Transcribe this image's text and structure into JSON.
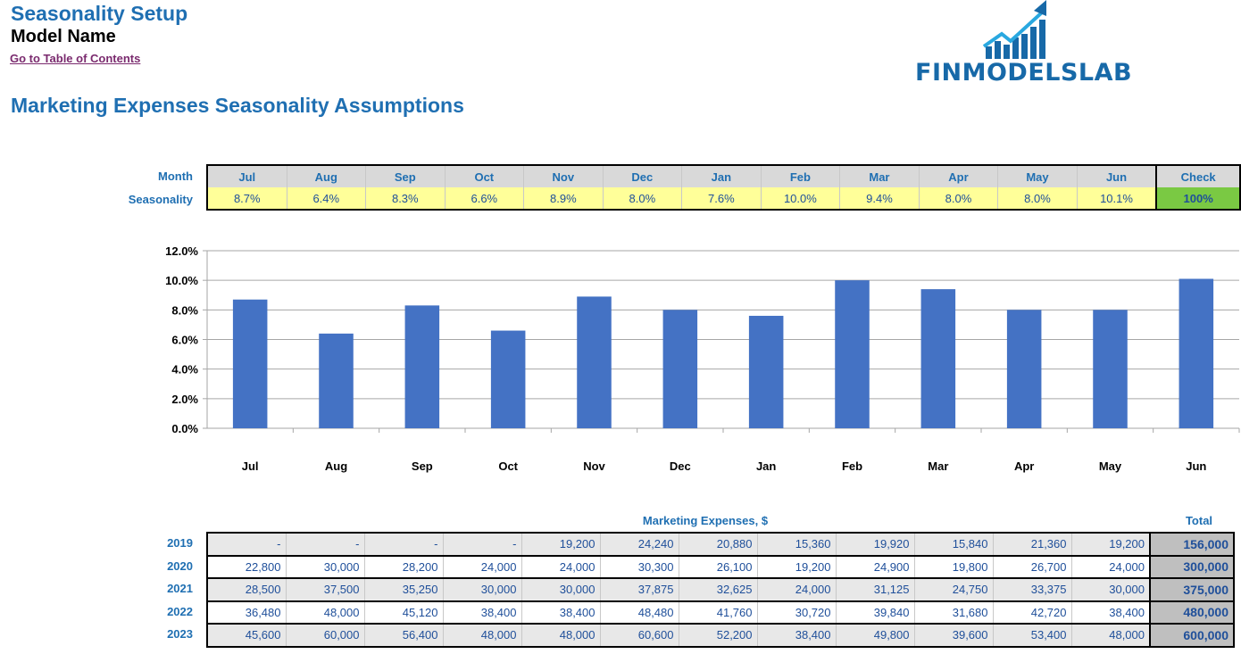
{
  "header": {
    "title": "Seasonality Setup",
    "model_name": "Model Name",
    "toc_link": "Go to Table of Contents",
    "logo_text": "FINMODELSLAB"
  },
  "section_title": "Marketing Expenses Seasonality Assumptions",
  "seasonality": {
    "month_label": "Month",
    "seasonality_label": "Seasonality",
    "months": [
      "Jul",
      "Aug",
      "Sep",
      "Oct",
      "Nov",
      "Dec",
      "Jan",
      "Feb",
      "Mar",
      "Apr",
      "May",
      "Jun"
    ],
    "values": [
      "8.7%",
      "6.4%",
      "8.3%",
      "6.6%",
      "8.9%",
      "8.0%",
      "7.6%",
      "10.0%",
      "9.4%",
      "8.0%",
      "8.0%",
      "10.1%"
    ],
    "check_label": "Check",
    "check_value": "100%"
  },
  "chart_data": {
    "type": "bar",
    "categories": [
      "Jul",
      "Aug",
      "Sep",
      "Oct",
      "Nov",
      "Dec",
      "Jan",
      "Feb",
      "Mar",
      "Apr",
      "May",
      "Jun"
    ],
    "values": [
      8.7,
      6.4,
      8.3,
      6.6,
      8.9,
      8.0,
      7.6,
      10.0,
      9.4,
      8.0,
      8.0,
      10.1
    ],
    "ylim": [
      0,
      12
    ],
    "yticks": [
      "0.0%",
      "2.0%",
      "4.0%",
      "6.0%",
      "8.0%",
      "10.0%",
      "12.0%"
    ],
    "grid": true,
    "color": "#4472c4"
  },
  "expenses": {
    "title": "Marketing Expenses, $",
    "total_label": "Total",
    "rows": [
      {
        "year": "2019",
        "values": [
          "-",
          "-",
          "-",
          "-",
          "19,200",
          "24,240",
          "20,880",
          "15,360",
          "19,920",
          "15,840",
          "21,360",
          "19,200"
        ],
        "total": "156,000"
      },
      {
        "year": "2020",
        "values": [
          "22,800",
          "30,000",
          "28,200",
          "24,000",
          "24,000",
          "30,300",
          "26,100",
          "19,200",
          "24,900",
          "19,800",
          "26,700",
          "24,000"
        ],
        "total": "300,000"
      },
      {
        "year": "2021",
        "values": [
          "28,500",
          "37,500",
          "35,250",
          "30,000",
          "30,000",
          "37,875",
          "32,625",
          "24,000",
          "31,125",
          "24,750",
          "33,375",
          "30,000"
        ],
        "total": "375,000"
      },
      {
        "year": "2022",
        "values": [
          "36,480",
          "48,000",
          "45,120",
          "38,400",
          "38,400",
          "48,480",
          "41,760",
          "30,720",
          "39,840",
          "31,680",
          "42,720",
          "38,400"
        ],
        "total": "480,000"
      },
      {
        "year": "2023",
        "values": [
          "45,600",
          "60,000",
          "56,400",
          "48,000",
          "48,000",
          "60,600",
          "52,200",
          "38,400",
          "49,800",
          "39,600",
          "53,400",
          "48,000"
        ],
        "total": "600,000"
      }
    ]
  }
}
